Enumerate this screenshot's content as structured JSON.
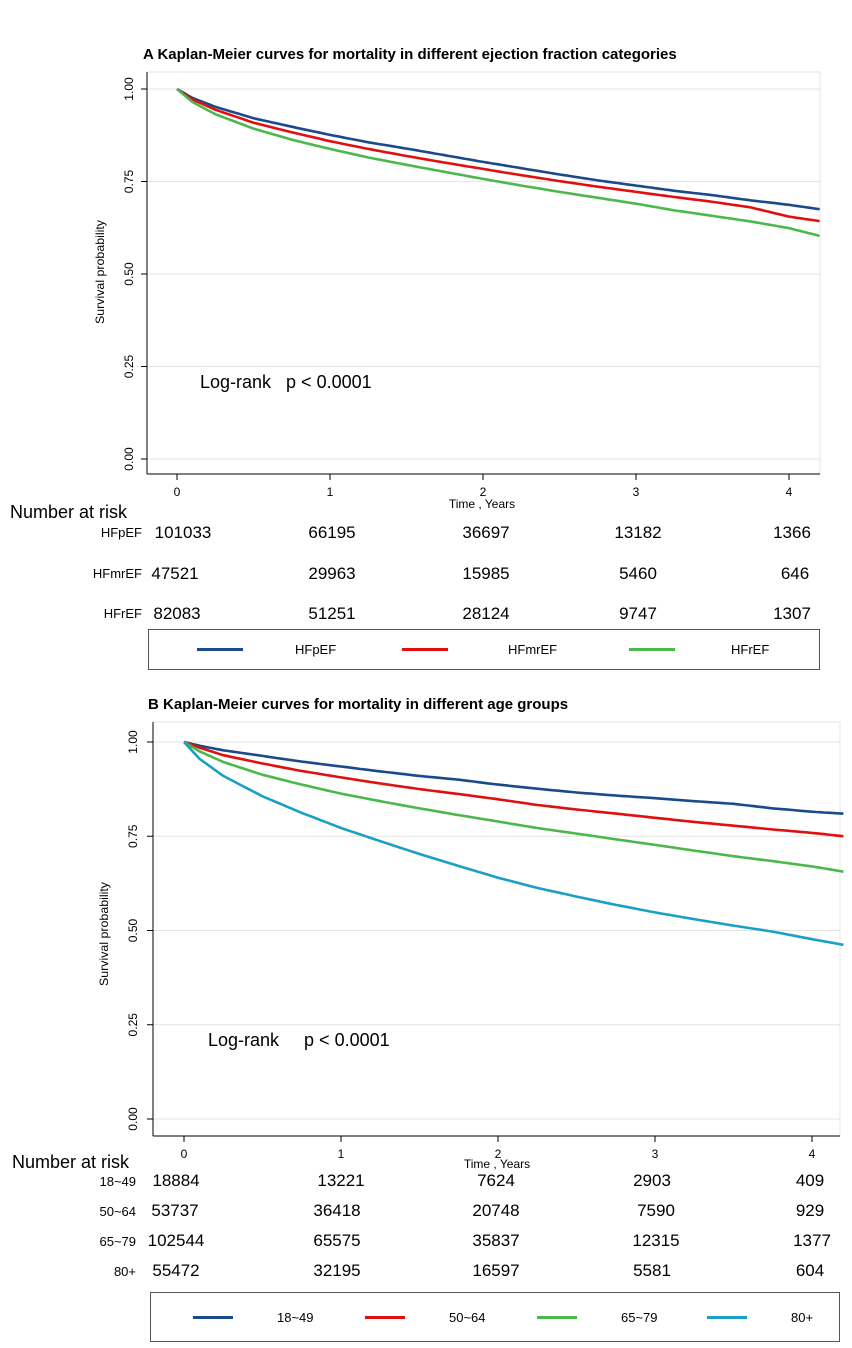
{
  "chart_data": [
    {
      "type": "line",
      "title": "A Kaplan-Meier curves for mortality  in different ejection fraction categories",
      "xlabel": "Time , Years",
      "ylabel": "Survival probability",
      "xlim": [
        0,
        4.2
      ],
      "ylim": [
        0,
        1
      ],
      "xticks": [
        "0",
        "1",
        "2",
        "3",
        "4"
      ],
      "yticks": [
        "0.00",
        "0.25",
        "0.50",
        "0.75",
        "1.00"
      ],
      "grid": true,
      "legend_position": "bottom",
      "annotation": "Log-rank   p < 0.0001",
      "series": [
        {
          "name": "HFpEF",
          "color": "#1a4a8a",
          "points": [
            [
              0,
              1.0
            ],
            [
              0.1,
              0.976
            ],
            [
              0.25,
              0.952
            ],
            [
              0.5,
              0.921
            ],
            [
              0.75,
              0.898
            ],
            [
              1,
              0.876
            ],
            [
              1.25,
              0.856
            ],
            [
              1.5,
              0.839
            ],
            [
              1.75,
              0.821
            ],
            [
              2,
              0.803
            ],
            [
              2.25,
              0.786
            ],
            [
              2.5,
              0.769
            ],
            [
              2.75,
              0.753
            ],
            [
              3,
              0.739
            ],
            [
              3.25,
              0.725
            ],
            [
              3.5,
              0.713
            ],
            [
              3.75,
              0.699
            ],
            [
              4,
              0.687
            ],
            [
              4.2,
              0.675
            ]
          ]
        },
        {
          "name": "HFmrEF",
          "color": "#e01010",
          "points": [
            [
              0,
              1.0
            ],
            [
              0.1,
              0.972
            ],
            [
              0.25,
              0.944
            ],
            [
              0.5,
              0.909
            ],
            [
              0.75,
              0.883
            ],
            [
              1,
              0.859
            ],
            [
              1.25,
              0.838
            ],
            [
              1.5,
              0.819
            ],
            [
              1.75,
              0.801
            ],
            [
              2,
              0.784
            ],
            [
              2.25,
              0.767
            ],
            [
              2.5,
              0.751
            ],
            [
              2.75,
              0.736
            ],
            [
              3,
              0.722
            ],
            [
              3.25,
              0.708
            ],
            [
              3.5,
              0.695
            ],
            [
              3.75,
              0.68
            ],
            [
              4,
              0.655
            ],
            [
              4.2,
              0.643
            ]
          ]
        },
        {
          "name": "HFrEF",
          "color": "#4ab84a",
          "points": [
            [
              0,
              1.0
            ],
            [
              0.1,
              0.965
            ],
            [
              0.25,
              0.932
            ],
            [
              0.5,
              0.893
            ],
            [
              0.75,
              0.863
            ],
            [
              1,
              0.838
            ],
            [
              1.25,
              0.815
            ],
            [
              1.5,
              0.795
            ],
            [
              1.75,
              0.776
            ],
            [
              2,
              0.757
            ],
            [
              2.25,
              0.739
            ],
            [
              2.5,
              0.722
            ],
            [
              2.75,
              0.706
            ],
            [
              3,
              0.69
            ],
            [
              3.25,
              0.672
            ],
            [
              3.5,
              0.657
            ],
            [
              3.75,
              0.642
            ],
            [
              4,
              0.624
            ],
            [
              4.2,
              0.603
            ]
          ]
        }
      ],
      "risk_table": {
        "header": "Number at risk",
        "rows": [
          {
            "label": "HFpEF",
            "values": [
              "101033",
              "66195",
              "36697",
              "13182",
              "1366"
            ]
          },
          {
            "label": "HFmrEF",
            "values": [
              "47521",
              "29963",
              "15985",
              "5460",
              "646"
            ]
          },
          {
            "label": "HFrEF",
            "values": [
              "82083",
              "51251",
              "28124",
              "9747",
              "1307"
            ]
          }
        ]
      }
    },
    {
      "type": "line",
      "title": "B Kaplan-Meier curves for mortality in different age groups",
      "xlabel": "Time , Years",
      "ylabel": "Survival probability",
      "xlim": [
        0,
        4.2
      ],
      "ylim": [
        0,
        1
      ],
      "xticks": [
        "0",
        "1",
        "2",
        "3",
        "4"
      ],
      "yticks": [
        "0.00",
        "0.25",
        "0.50",
        "0.75",
        "1.00"
      ],
      "grid": true,
      "legend_position": "bottom",
      "annotation": "Log-rank     p < 0.0001",
      "series": [
        {
          "name": "18~49",
          "color": "#1a4a8a",
          "points": [
            [
              0,
              1.0
            ],
            [
              0.1,
              0.99
            ],
            [
              0.25,
              0.978
            ],
            [
              0.5,
              0.963
            ],
            [
              0.75,
              0.948
            ],
            [
              1,
              0.935
            ],
            [
              1.25,
              0.922
            ],
            [
              1.5,
              0.91
            ],
            [
              1.75,
              0.9
            ],
            [
              2,
              0.887
            ],
            [
              2.25,
              0.876
            ],
            [
              2.5,
              0.866
            ],
            [
              2.75,
              0.858
            ],
            [
              3,
              0.851
            ],
            [
              3.25,
              0.843
            ],
            [
              3.5,
              0.836
            ],
            [
              3.75,
              0.824
            ],
            [
              4,
              0.815
            ],
            [
              4.2,
              0.81
            ]
          ]
        },
        {
          "name": "50~64",
          "color": "#e01010",
          "points": [
            [
              0,
              1.0
            ],
            [
              0.1,
              0.985
            ],
            [
              0.25,
              0.965
            ],
            [
              0.5,
              0.943
            ],
            [
              0.75,
              0.923
            ],
            [
              1,
              0.906
            ],
            [
              1.25,
              0.89
            ],
            [
              1.5,
              0.875
            ],
            [
              1.75,
              0.862
            ],
            [
              2,
              0.848
            ],
            [
              2.25,
              0.833
            ],
            [
              2.5,
              0.821
            ],
            [
              2.75,
              0.81
            ],
            [
              3,
              0.799
            ],
            [
              3.25,
              0.788
            ],
            [
              3.5,
              0.778
            ],
            [
              3.75,
              0.768
            ],
            [
              4,
              0.759
            ],
            [
              4.2,
              0.75
            ]
          ]
        },
        {
          "name": "65~79",
          "color": "#4ab84a",
          "points": [
            [
              0,
              1.0
            ],
            [
              0.1,
              0.975
            ],
            [
              0.25,
              0.947
            ],
            [
              0.5,
              0.913
            ],
            [
              0.75,
              0.887
            ],
            [
              1,
              0.863
            ],
            [
              1.25,
              0.843
            ],
            [
              1.5,
              0.824
            ],
            [
              1.75,
              0.806
            ],
            [
              2,
              0.789
            ],
            [
              2.25,
              0.772
            ],
            [
              2.5,
              0.757
            ],
            [
              2.75,
              0.742
            ],
            [
              3,
              0.727
            ],
            [
              3.25,
              0.712
            ],
            [
              3.5,
              0.697
            ],
            [
              3.75,
              0.684
            ],
            [
              4,
              0.67
            ],
            [
              4.2,
              0.656
            ]
          ]
        },
        {
          "name": "80+",
          "color": "#1aa0c4",
          "points": [
            [
              0,
              1.0
            ],
            [
              0.1,
              0.955
            ],
            [
              0.25,
              0.91
            ],
            [
              0.5,
              0.856
            ],
            [
              0.75,
              0.812
            ],
            [
              1,
              0.772
            ],
            [
              1.25,
              0.737
            ],
            [
              1.5,
              0.703
            ],
            [
              1.75,
              0.671
            ],
            [
              2,
              0.64
            ],
            [
              2.25,
              0.613
            ],
            [
              2.5,
              0.59
            ],
            [
              2.75,
              0.568
            ],
            [
              3,
              0.548
            ],
            [
              3.25,
              0.53
            ],
            [
              3.5,
              0.513
            ],
            [
              3.75,
              0.497
            ],
            [
              4,
              0.477
            ],
            [
              4.2,
              0.462
            ]
          ]
        }
      ],
      "risk_table": {
        "header": "Number at risk",
        "rows": [
          {
            "label": "18~49",
            "values": [
              "18884",
              "13221",
              "7624",
              "2903",
              "409"
            ]
          },
          {
            "label": "50~64",
            "values": [
              "53737",
              "36418",
              "20748",
              "7590",
              "929"
            ]
          },
          {
            "label": "65~79",
            "values": [
              "102544",
              "65575",
              "35837",
              "12315",
              "1377"
            ]
          },
          {
            "label": "80+",
            "values": [
              "55472",
              "32195",
              "16597",
              "5581",
              "604"
            ]
          }
        ]
      }
    }
  ]
}
